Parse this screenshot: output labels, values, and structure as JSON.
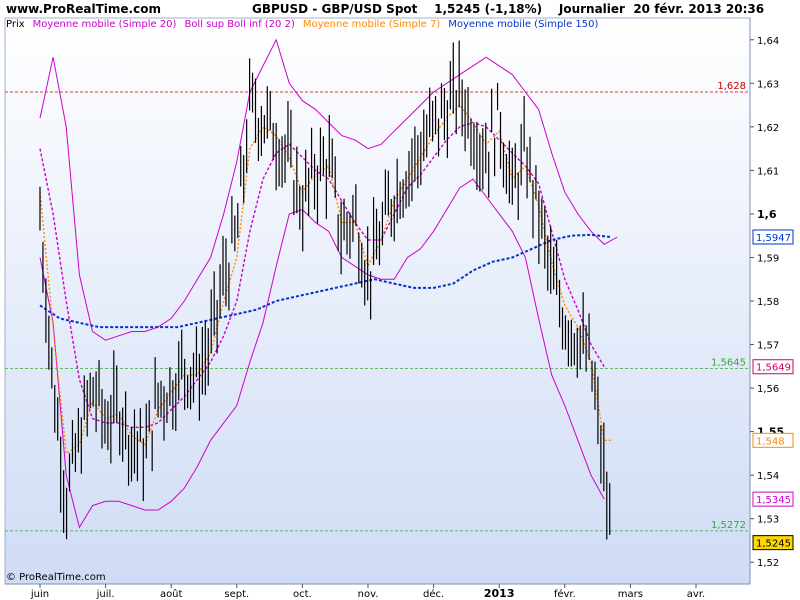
{
  "header": {
    "site": "www.ProRealTime.com",
    "title": "GBPUSD - GBP/USD Spot    1,5245 (-1,18%)    Journalier  20 févr. 2013 20:36"
  },
  "legend": [
    {
      "label": "Prix",
      "color": "#000000"
    },
    {
      "label": "Moyenne mobile (Simple 20)",
      "color": "#cc00cc"
    },
    {
      "label": "Boll sup Boll inf (20 2)",
      "color": "#cc00cc"
    },
    {
      "label": "Moyenne mobile (Simple 7)",
      "color": "#ff8800"
    },
    {
      "label": "Moyenne mobile (Simple 150)",
      "color": "#0033cc"
    }
  ],
  "copyright": "© ProRealTime.com",
  "chart_data": {
    "type": "line",
    "ylim": [
      1.515,
      1.645
    ],
    "y_ticks": [
      "1,52",
      "1,53",
      "1,54",
      "1,55",
      "1,56",
      "1,57",
      "1,58",
      "1,59",
      "1,6",
      "1,61",
      "1,62",
      "1,63",
      "1,64"
    ],
    "x_months": [
      "juin",
      "juil.",
      "août",
      "sept.",
      "oct.",
      "nov.",
      "déc.",
      "2013",
      "févr.",
      "mars",
      "avr."
    ],
    "x_month_pos": [
      0,
      1,
      2,
      3,
      4,
      5,
      6,
      7,
      8,
      9,
      10
    ],
    "reference_lines": [
      {
        "value": 1.628,
        "label": "1,628",
        "color": "#cc0000"
      },
      {
        "value": 1.5645,
        "label": "1,5645",
        "color": "#33aa33"
      },
      {
        "value": 1.5272,
        "label": "1,5272",
        "color": "#33aa33"
      }
    ],
    "price_labels": [
      {
        "value": 1.5947,
        "label": "1,5947",
        "color": "#0033cc",
        "fill": "#ffffff"
      },
      {
        "value": 1.5649,
        "label": "1,5649",
        "color": "#cc0066",
        "fill": "#ffffff"
      },
      {
        "value": 1.548,
        "label": "1,548",
        "color": "#ff8800",
        "fill": "#ffffff"
      },
      {
        "value": 1.5345,
        "label": "1,5345",
        "color": "#cc00cc",
        "fill": "#ffffff"
      },
      {
        "value": 1.5245,
        "label": "1,5245",
        "color": "#000000",
        "fill": "#ffd700"
      }
    ],
    "series": [
      {
        "name": "Prix",
        "kind": "price",
        "x": [
          0,
          0.2,
          0.4,
          0.6,
          0.8,
          1.0,
          1.2,
          1.4,
          1.6,
          1.8,
          2.0,
          2.2,
          2.4,
          2.6,
          2.8,
          3.0,
          3.2,
          3.4,
          3.6,
          3.8,
          4.0,
          4.2,
          4.4,
          4.6,
          4.8,
          5.0,
          5.2,
          5.4,
          5.6,
          5.8,
          6.0,
          6.2,
          6.4,
          6.6,
          6.8,
          7.0,
          7.2,
          7.4,
          7.6,
          7.8,
          8.0,
          8.2,
          8.4,
          8.6,
          8.7
        ],
        "y": [
          1.6,
          1.56,
          1.535,
          1.548,
          1.56,
          1.552,
          1.556,
          1.548,
          1.545,
          1.558,
          1.56,
          1.565,
          1.563,
          1.57,
          1.585,
          1.595,
          1.625,
          1.622,
          1.618,
          1.612,
          1.602,
          1.61,
          1.612,
          1.595,
          1.6,
          1.586,
          1.595,
          1.605,
          1.61,
          1.615,
          1.62,
          1.624,
          1.628,
          1.62,
          1.614,
          1.622,
          1.605,
          1.614,
          1.6,
          1.585,
          1.576,
          1.572,
          1.565,
          1.54,
          1.5245
        ]
      },
      {
        "name": "Moyenne mobile (Simple 20)",
        "kind": "sma20",
        "color": "#cc00cc",
        "x": [
          0,
          0.2,
          0.4,
          0.6,
          0.8,
          1.0,
          1.2,
          1.4,
          1.6,
          1.8,
          2.0,
          2.2,
          2.4,
          2.6,
          2.8,
          3.0,
          3.2,
          3.4,
          3.6,
          3.8,
          4.0,
          4.2,
          4.4,
          4.6,
          4.8,
          5.0,
          5.2,
          5.4,
          5.6,
          5.8,
          6.0,
          6.2,
          6.4,
          6.6,
          6.8,
          7.0,
          7.2,
          7.4,
          7.6,
          7.8,
          8.0,
          8.2,
          8.4,
          8.6
        ],
        "y": [
          1.615,
          1.6,
          1.58,
          1.562,
          1.553,
          1.552,
          1.552,
          1.551,
          1.551,
          1.552,
          1.555,
          1.558,
          1.562,
          1.566,
          1.572,
          1.58,
          1.596,
          1.608,
          1.614,
          1.616,
          1.613,
          1.61,
          1.608,
          1.603,
          1.598,
          1.594,
          1.594,
          1.6,
          1.606,
          1.609,
          1.613,
          1.617,
          1.62,
          1.621,
          1.62,
          1.617,
          1.614,
          1.611,
          1.607,
          1.596,
          1.585,
          1.578,
          1.57,
          1.5649
        ]
      },
      {
        "name": "Boll sup",
        "kind": "bollup",
        "color": "#cc00cc",
        "x": [
          0,
          0.2,
          0.4,
          0.6,
          0.8,
          1.0,
          1.2,
          1.4,
          1.6,
          1.8,
          2.0,
          2.2,
          2.4,
          2.6,
          2.8,
          3.0,
          3.2,
          3.4,
          3.6,
          3.8,
          4.0,
          4.2,
          4.4,
          4.6,
          4.8,
          5.0,
          5.2,
          5.4,
          5.6,
          5.8,
          6.0,
          6.2,
          6.4,
          6.6,
          6.8,
          7.0,
          7.2,
          7.4,
          7.6,
          7.8,
          8.0,
          8.2,
          8.4,
          8.6,
          8.8
        ],
        "y": [
          1.622,
          1.636,
          1.62,
          1.586,
          1.573,
          1.571,
          1.572,
          1.573,
          1.573,
          1.574,
          1.576,
          1.58,
          1.585,
          1.59,
          1.6,
          1.612,
          1.628,
          1.634,
          1.64,
          1.63,
          1.626,
          1.624,
          1.621,
          1.618,
          1.617,
          1.615,
          1.616,
          1.619,
          1.622,
          1.625,
          1.628,
          1.63,
          1.632,
          1.634,
          1.636,
          1.634,
          1.632,
          1.628,
          1.624,
          1.614,
          1.605,
          1.6,
          1.596,
          1.593,
          1.5947
        ]
      },
      {
        "name": "Boll inf",
        "kind": "bolldn",
        "color": "#cc00cc",
        "x": [
          0,
          0.2,
          0.4,
          0.6,
          0.8,
          1.0,
          1.2,
          1.4,
          1.6,
          1.8,
          2.0,
          2.2,
          2.4,
          2.6,
          2.8,
          3.0,
          3.2,
          3.4,
          3.6,
          3.8,
          4.0,
          4.2,
          4.4,
          4.6,
          4.8,
          5.0,
          5.2,
          5.4,
          5.6,
          5.8,
          6.0,
          6.2,
          6.4,
          6.6,
          6.8,
          7.0,
          7.2,
          7.4,
          7.6,
          7.8,
          8.0,
          8.2,
          8.4,
          8.6
        ],
        "y": [
          1.59,
          1.575,
          1.54,
          1.528,
          1.533,
          1.534,
          1.534,
          1.533,
          1.532,
          1.532,
          1.534,
          1.537,
          1.542,
          1.548,
          1.552,
          1.556,
          1.566,
          1.575,
          1.588,
          1.6,
          1.601,
          1.598,
          1.596,
          1.59,
          1.588,
          1.586,
          1.585,
          1.585,
          1.59,
          1.592,
          1.596,
          1.601,
          1.606,
          1.608,
          1.604,
          1.6,
          1.596,
          1.59,
          1.576,
          1.563,
          1.556,
          1.548,
          1.54,
          1.5345
        ]
      },
      {
        "name": "Moyenne mobile (Simple 7)",
        "kind": "sma7",
        "color": "#ff8800",
        "x": [
          0,
          0.2,
          0.4,
          0.6,
          0.8,
          1.0,
          1.2,
          1.4,
          1.6,
          1.8,
          2.0,
          2.2,
          2.4,
          2.6,
          2.8,
          3.0,
          3.2,
          3.4,
          3.6,
          3.8,
          4.0,
          4.2,
          4.4,
          4.6,
          4.8,
          5.0,
          5.2,
          5.4,
          5.6,
          5.8,
          6.0,
          6.2,
          6.4,
          6.6,
          6.8,
          7.0,
          7.2,
          7.4,
          7.6,
          7.8,
          8.0,
          8.2,
          8.4,
          8.6,
          8.7
        ],
        "y": [
          1.605,
          1.574,
          1.545,
          1.547,
          1.557,
          1.553,
          1.554,
          1.549,
          1.547,
          1.555,
          1.559,
          1.563,
          1.563,
          1.568,
          1.58,
          1.59,
          1.615,
          1.62,
          1.618,
          1.613,
          1.605,
          1.609,
          1.611,
          1.598,
          1.598,
          1.588,
          1.594,
          1.603,
          1.608,
          1.613,
          1.618,
          1.622,
          1.625,
          1.621,
          1.616,
          1.619,
          1.608,
          1.611,
          1.602,
          1.589,
          1.579,
          1.574,
          1.566,
          1.548,
          1.548
        ]
      },
      {
        "name": "Moyenne mobile (Simple 150)",
        "kind": "sma150",
        "color": "#0033cc",
        "x": [
          0,
          0.3,
          0.6,
          0.9,
          1.2,
          1.5,
          1.8,
          2.1,
          2.4,
          2.7,
          3.0,
          3.3,
          3.6,
          3.9,
          4.2,
          4.5,
          4.8,
          5.1,
          5.4,
          5.7,
          6.0,
          6.3,
          6.6,
          6.9,
          7.2,
          7.5,
          7.8,
          8.1,
          8.4,
          8.7
        ],
        "y": [
          1.579,
          1.576,
          1.575,
          1.574,
          1.574,
          1.574,
          1.574,
          1.574,
          1.575,
          1.576,
          1.577,
          1.578,
          1.58,
          1.581,
          1.582,
          1.583,
          1.584,
          1.585,
          1.584,
          1.583,
          1.583,
          1.584,
          1.587,
          1.589,
          1.59,
          1.592,
          1.594,
          1.595,
          1.5952,
          1.5947
        ]
      }
    ]
  }
}
